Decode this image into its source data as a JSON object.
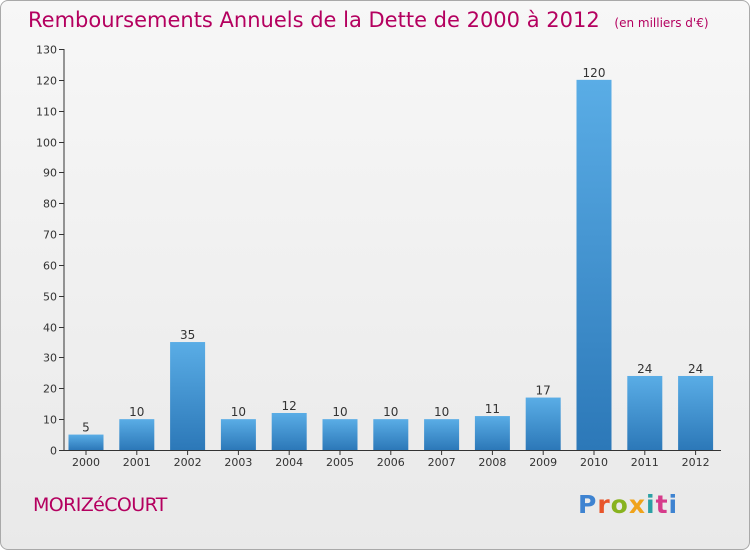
{
  "chart_data": {
    "type": "bar",
    "title": "Remboursements Annuels de la Dette de 2000 à 2012",
    "subtitle": "(en milliers d'€)",
    "categories": [
      "2000",
      "2001",
      "2002",
      "2003",
      "2004",
      "2005",
      "2006",
      "2007",
      "2008",
      "2009",
      "2010",
      "2011",
      "2012"
    ],
    "values": [
      5,
      10,
      35,
      10,
      12,
      10,
      10,
      10,
      11,
      17,
      120,
      24,
      24
    ],
    "ylim": [
      0,
      130
    ],
    "yticks": [
      0,
      10,
      20,
      30,
      40,
      50,
      60,
      70,
      80,
      90,
      100,
      110,
      120,
      130
    ],
    "grid": false,
    "colors": {
      "bar_light": "#5aade6",
      "bar_dark": "#2c78b8",
      "title": "#b4005f"
    }
  },
  "footer": {
    "place_name": "MORIZéCOURT",
    "logo_text": "Proxiti",
    "logo_colors": [
      "#3e83d1",
      "#e8552b",
      "#88b31f",
      "#f0a31a",
      "#2ba0a5",
      "#d63b8b",
      "#3e83d1"
    ]
  }
}
